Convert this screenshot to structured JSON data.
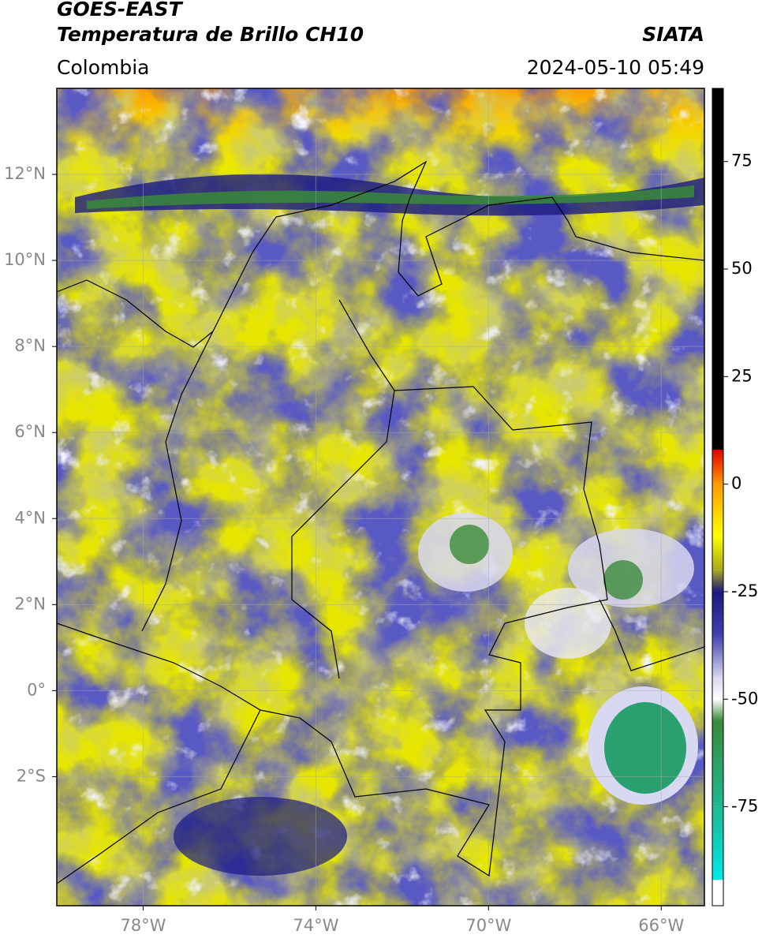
{
  "header": {
    "title": "GOES-EAST",
    "subtitle": "Temperatura de Brillo CH10",
    "source": "SIATA",
    "region": "Colombia",
    "datetime": "2024-05-10 05:49"
  },
  "map": {
    "xlim": [
      -80,
      -65
    ],
    "ylim": [
      -5,
      14
    ],
    "xticks": [
      {
        "value": -78,
        "label": "78°W"
      },
      {
        "value": -74,
        "label": "74°W"
      },
      {
        "value": -70,
        "label": "70°W"
      },
      {
        "value": -66,
        "label": "66°W"
      }
    ],
    "yticks": [
      {
        "value": 12,
        "label": "12°N"
      },
      {
        "value": 10,
        "label": "10°N"
      },
      {
        "value": 8,
        "label": "8°N"
      },
      {
        "value": 6,
        "label": "6°N"
      },
      {
        "value": 4,
        "label": "4°N"
      },
      {
        "value": 2,
        "label": "2°N"
      },
      {
        "value": 0,
        "label": "0°"
      },
      {
        "value": -2,
        "label": "2°S"
      }
    ],
    "grid": true
  },
  "colorbar": {
    "lim": [
      -98,
      92
    ],
    "ticks": [
      75,
      50,
      25,
      0,
      -25,
      -50,
      -75
    ],
    "stops": [
      {
        "value": 92,
        "color": "#000000"
      },
      {
        "value": 8,
        "color": "#000000"
      },
      {
        "value": 8,
        "color": "#e00000"
      },
      {
        "value": 0,
        "color": "#ff9a00"
      },
      {
        "value": -12,
        "color": "#ffff00"
      },
      {
        "value": -20,
        "color": "#a8a820"
      },
      {
        "value": -25,
        "color": "#1a1a80"
      },
      {
        "value": -35,
        "color": "#4040b0"
      },
      {
        "value": -45,
        "color": "#d8d8f0"
      },
      {
        "value": -50,
        "color": "#ffffff"
      },
      {
        "value": -55,
        "color": "#3a8a3a"
      },
      {
        "value": -75,
        "color": "#20b890"
      },
      {
        "value": -92,
        "color": "#00e8e8"
      },
      {
        "value": -92,
        "color": "#ffffff"
      },
      {
        "value": -98,
        "color": "#ffffff"
      }
    ]
  }
}
